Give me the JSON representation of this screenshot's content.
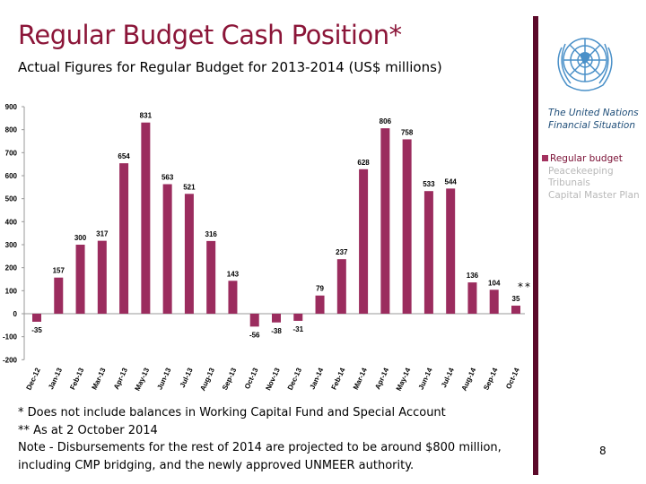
{
  "title": "Regular Budget Cash Position*",
  "subtitle": "Actual Figures for Regular Budget for 2013-2014 (US$ millions)",
  "panel": {
    "title_line1": "The United Nations",
    "title_line2": "Financial Situation",
    "legend": [
      "Regular budget",
      "Peacekeeping",
      "Tribunals",
      "Capital Master Plan"
    ]
  },
  "annotation": "**",
  "notes": [
    "* Does not include balances in Working Capital Fund and Special Account",
    "** As at 2 October 2014",
    "Note -  Disbursements for the rest of 2014 are projected to be around $800 million,",
    "including CMP bridging, and the newly approved UNMEER authority."
  ],
  "page_number": "8",
  "colors": {
    "bar": "#9b2c5e",
    "title": "#8b1538",
    "accent_bar": "#5c0a2a"
  },
  "chart_data": {
    "type": "bar",
    "categories": [
      "Dec-12",
      "Jan-13",
      "Feb-13",
      "Mar-13",
      "Apr-13",
      "May-13",
      "Jun-13",
      "Jul-13",
      "Aug-13",
      "Sep-13",
      "Oct-13",
      "Nov-13",
      "Dec-13",
      "Jan-14",
      "Feb-14",
      "Mar-14",
      "Apr-14",
      "May-14",
      "Jun-14",
      "Jul-14",
      "Aug-14",
      "Sep-14",
      "Oct-14"
    ],
    "values": [
      -35,
      157,
      300,
      317,
      654,
      831,
      563,
      521,
      316,
      143,
      -56,
      -38,
      -31,
      79,
      237,
      628,
      806,
      758,
      533,
      544,
      136,
      104,
      35
    ],
    "ylim": [
      -200,
      900
    ],
    "yticks": [
      -200,
      -100,
      0,
      100,
      200,
      300,
      400,
      500,
      600,
      700,
      800,
      900
    ],
    "grid": false
  }
}
